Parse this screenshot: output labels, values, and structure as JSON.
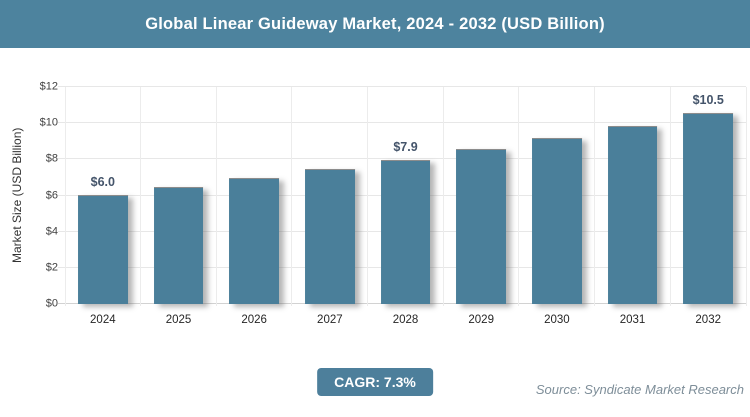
{
  "header": {
    "title": "Global Linear Guideway Market, 2024 - 2032 (USD Billion)",
    "bg_color": "#4d839e"
  },
  "chart_data": {
    "type": "bar",
    "title": "Global Linear Guideway Market, 2024 - 2032 (USD Billion)",
    "categories": [
      "2024",
      "2025",
      "2026",
      "2027",
      "2028",
      "2029",
      "2030",
      "2031",
      "2032"
    ],
    "values": [
      6.0,
      6.4,
      6.9,
      7.4,
      7.9,
      8.5,
      9.1,
      9.8,
      10.5
    ],
    "bar_labels": [
      "$6.0",
      "",
      "",
      "",
      "$7.9",
      "",
      "",
      "",
      "$10.5"
    ],
    "xlabel": "",
    "ylabel": "Market Size (USD Billion)",
    "ylim": [
      0,
      12
    ],
    "ytick_step": 2,
    "ytick_labels": [
      "$0",
      "$2",
      "$4",
      "$6",
      "$8",
      "$10",
      "$12"
    ],
    "grid": true,
    "legend": false,
    "bar_color": "#4a7f9a",
    "data_label_color": "#44546a"
  },
  "footer": {
    "cagr_label": "CAGR: 7.3%",
    "cagr_bg_color": "#4d7f9b",
    "source": "Source: Syndicate Market Research"
  }
}
